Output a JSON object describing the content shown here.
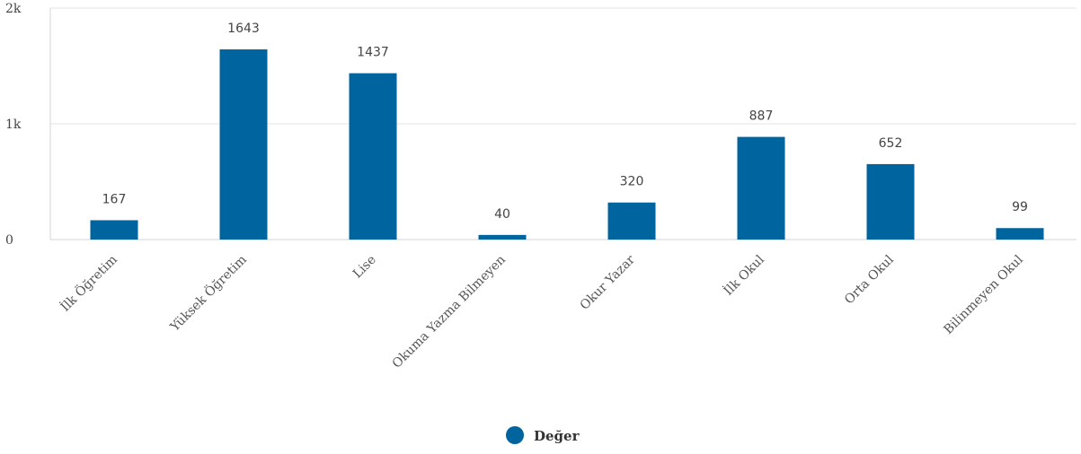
{
  "chart_data": {
    "type": "bar",
    "categories": [
      "İlk Öğretim",
      "Yüksek Öğretim",
      "Lise",
      "Okuma Yazma Bilmeyen",
      "Okur Yazar",
      "İlk Okul",
      "Orta Okul",
      "Bilinmeyen Okul"
    ],
    "series": [
      {
        "name": "Değer",
        "values": [
          167,
          1643,
          1437,
          40,
          320,
          887,
          652,
          99
        ]
      }
    ],
    "ylim": [
      0,
      2000
    ],
    "yticks": [
      {
        "value": 0,
        "label": "0"
      },
      {
        "value": 1000,
        "label": "1k"
      },
      {
        "value": 2000,
        "label": "2k"
      }
    ],
    "color": "#00649f",
    "grid": true,
    "legend": "bottom-center"
  }
}
